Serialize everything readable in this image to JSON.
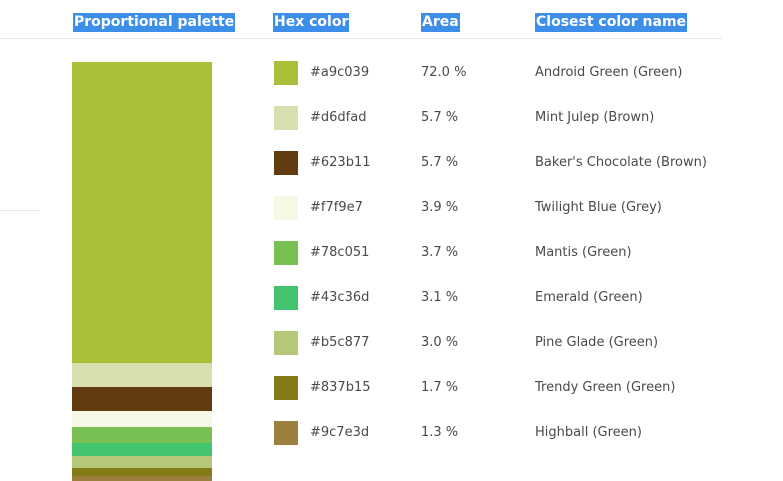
{
  "headers": {
    "palette": "Proportional palette",
    "hex": "Hex color",
    "area": "Area",
    "name": "Closest color name"
  },
  "colors": [
    {
      "hex": "#a9c039",
      "area": "72.0 %",
      "fraction": 0.72,
      "name": "Android Green (Green)"
    },
    {
      "hex": "#d6dfad",
      "area": "5.7 %",
      "fraction": 0.057,
      "name": "Mint Julep (Brown)"
    },
    {
      "hex": "#623b11",
      "area": "5.7 %",
      "fraction": 0.057,
      "name": "Baker's Chocolate (Brown)"
    },
    {
      "hex": "#f7f9e7",
      "area": "3.9 %",
      "fraction": 0.039,
      "name": "Twilight Blue (Grey)"
    },
    {
      "hex": "#78c051",
      "area": "3.7 %",
      "fraction": 0.037,
      "name": "Mantis (Green)"
    },
    {
      "hex": "#43c36d",
      "area": "3.1 %",
      "fraction": 0.031,
      "name": "Emerald (Green)"
    },
    {
      "hex": "#b5c877",
      "area": "3.0 %",
      "fraction": 0.03,
      "name": "Pine Glade (Green)"
    },
    {
      "hex": "#837b15",
      "area": "1.7 %",
      "fraction": 0.017,
      "name": "Trendy Green (Green)"
    },
    {
      "hex": "#9c7e3d",
      "area": "1.3 %",
      "fraction": 0.013,
      "name": "Highball (Green)"
    }
  ],
  "accent_color": "#3d8ee8"
}
